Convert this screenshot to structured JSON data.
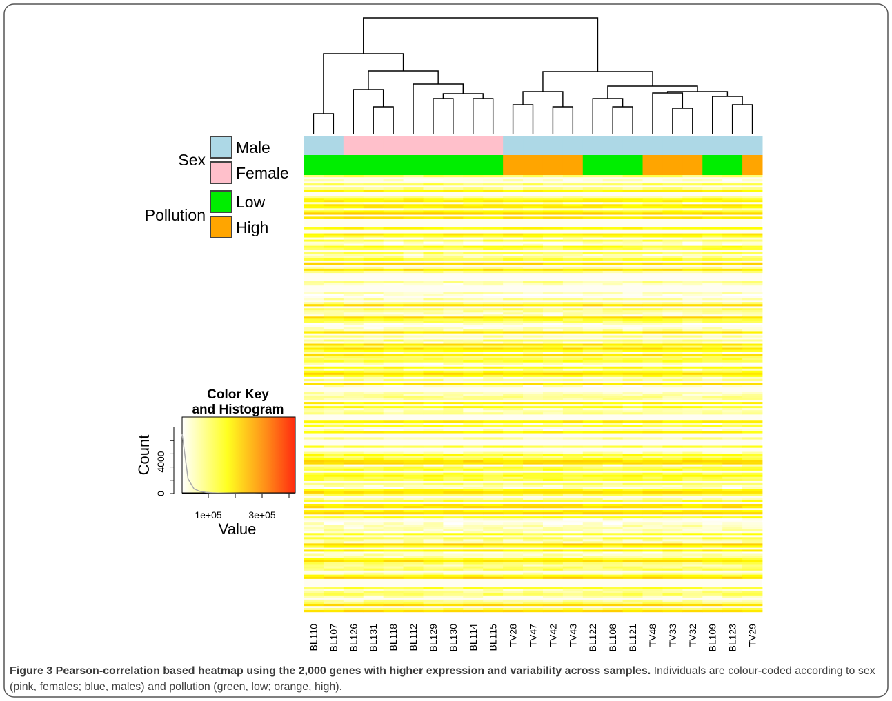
{
  "figure": {
    "caption_bold": "Figure 3 Pearson-correlation based heatmap using the 2,000 genes with higher expression and variability across samples.",
    "caption_rest": " Individuals are colour-coded according to sex (pink, females; blue, males) and pollution (green, low; orange, high)."
  },
  "legend": {
    "sex_title": "Sex",
    "pollution_title": "Pollution",
    "items": [
      {
        "label": "Male",
        "color": "#add8e6"
      },
      {
        "label": "Female",
        "color": "#ffc0cb"
      },
      {
        "label": "Low",
        "color": "#00ee00"
      },
      {
        "label": "High",
        "color": "#ffa500"
      }
    ]
  },
  "chart_data": [
    {
      "type": "heatmap",
      "title": "",
      "samples": [
        "BL110",
        "BL107",
        "BL126",
        "BL131",
        "BL118",
        "BL112",
        "BL129",
        "BL130",
        "BL114",
        "BL115",
        "TV28",
        "TV47",
        "TV42",
        "TV43",
        "BL122",
        "BL108",
        "BL121",
        "TV48",
        "TV33",
        "TV32",
        "BL109",
        "BL123",
        "TV29"
      ],
      "sex": [
        "Male",
        "Male",
        "Female",
        "Female",
        "Female",
        "Female",
        "Female",
        "Female",
        "Female",
        "Female",
        "Male",
        "Male",
        "Male",
        "Male",
        "Male",
        "Male",
        "Male",
        "Male",
        "Male",
        "Male",
        "Male",
        "Male",
        "Male"
      ],
      "pollution": [
        "Low",
        "Low",
        "Low",
        "Low",
        "Low",
        "Low",
        "Low",
        "Low",
        "Low",
        "Low",
        "High",
        "High",
        "High",
        "High",
        "Low",
        "Low",
        "Low",
        "High",
        "High",
        "High",
        "Low",
        "Low",
        "High"
      ],
      "n_genes": 2000,
      "colors": {
        "low": "#ffffff",
        "mid": "#ffff00",
        "high": "#ff2000"
      }
    },
    {
      "type": "bar",
      "title": "Color Key and Histogram",
      "title_lines": [
        "Color Key",
        "and Histogram"
      ],
      "xlabel": "Value",
      "ylabel": "Count",
      "x_ticks": [
        "1e+05",
        "3e+05"
      ],
      "y_ticks": [
        "0",
        "4000"
      ],
      "ylim": [
        0,
        10000
      ],
      "histogram_values": [
        9000,
        2200,
        700,
        320,
        180,
        110,
        80,
        60,
        50,
        40,
        30,
        25,
        20,
        15,
        12,
        10,
        8,
        6,
        5,
        4
      ],
      "color_scale": [
        "#ffffff",
        "#ffff00",
        "#ff2000"
      ]
    }
  ]
}
